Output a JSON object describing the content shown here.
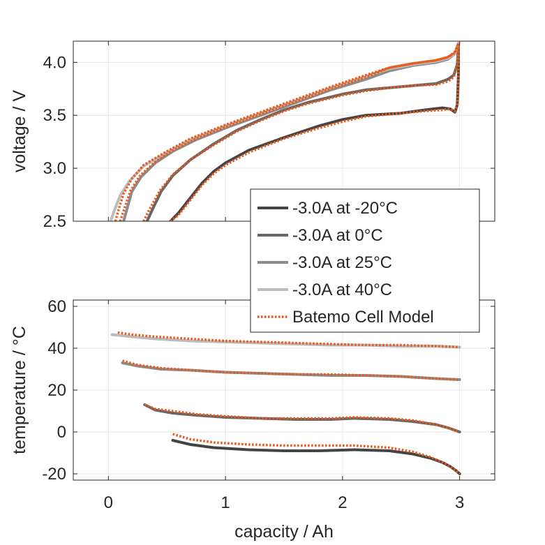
{
  "colors": {
    "model": "#E8591A",
    "series": [
      "#444444",
      "#666666",
      "#8c8c8c",
      "#bcbcbc"
    ],
    "grid": "#e6e6e6",
    "axis": "#262626"
  },
  "chart_data": [
    {
      "type": "line",
      "ylabel": "voltage / V",
      "xlim": [
        -0.3,
        3.3
      ],
      "ylim": [
        2.5,
        4.2
      ],
      "xticks": [
        0,
        1,
        2,
        3
      ],
      "yticks": [
        2.5,
        3.0,
        3.5,
        4.0
      ],
      "ytick_labels": [
        "2.5",
        "3.0",
        "3.5",
        "4.0"
      ],
      "grid": true,
      "legend_placement": "lower-right",
      "series": [
        {
          "name": "-3.0A at -20°C",
          "x": [
            0.53,
            0.6,
            0.7,
            0.8,
            0.9,
            1.0,
            1.2,
            1.5,
            1.8,
            2.0,
            2.2,
            2.5,
            2.7,
            2.85,
            2.92,
            2.96,
            2.98,
            2.99,
            2.99
          ],
          "y": [
            2.5,
            2.58,
            2.72,
            2.86,
            2.97,
            3.05,
            3.17,
            3.29,
            3.4,
            3.46,
            3.5,
            3.52,
            3.55,
            3.57,
            3.56,
            3.53,
            3.6,
            3.9,
            4.18
          ]
        },
        {
          "name": "-3.0A at 0°C",
          "x": [
            0.33,
            0.38,
            0.45,
            0.55,
            0.7,
            0.9,
            1.1,
            1.3,
            1.5,
            1.7,
            2.0,
            2.2,
            2.4,
            2.6,
            2.8,
            2.9,
            2.95,
            2.98,
            2.99
          ],
          "y": [
            2.5,
            2.62,
            2.78,
            2.93,
            3.08,
            3.23,
            3.36,
            3.46,
            3.55,
            3.62,
            3.7,
            3.74,
            3.76,
            3.78,
            3.8,
            3.84,
            3.88,
            3.98,
            4.18
          ]
        },
        {
          "name": "-3.0A at 25°C",
          "x": [
            0.13,
            0.16,
            0.2,
            0.28,
            0.4,
            0.55,
            0.75,
            1.0,
            1.3,
            1.6,
            1.9,
            2.2,
            2.4,
            2.6,
            2.8,
            2.9,
            2.96,
            2.99
          ],
          "y": [
            2.5,
            2.62,
            2.78,
            2.92,
            3.05,
            3.16,
            3.27,
            3.38,
            3.5,
            3.62,
            3.74,
            3.84,
            3.92,
            3.97,
            4.0,
            4.03,
            4.08,
            4.18
          ]
        },
        {
          "name": "-3.0A at 40°C",
          "x": [
            0.02,
            0.05,
            0.1,
            0.18,
            0.3,
            0.5,
            0.7,
            1.0,
            1.3,
            1.6,
            1.9,
            2.2,
            2.4,
            2.6,
            2.8,
            2.9,
            2.96,
            2.99
          ],
          "y": [
            2.5,
            2.6,
            2.74,
            2.88,
            3.02,
            3.15,
            3.27,
            3.4,
            3.52,
            3.64,
            3.76,
            3.87,
            3.94,
            3.98,
            4.01,
            4.04,
            4.08,
            4.18
          ]
        },
        {
          "name": "Batemo Cell Model",
          "model_of": [
            0,
            1,
            2,
            3
          ]
        }
      ],
      "model_curves": [
        {
          "x": [
            0.53,
            0.6,
            0.7,
            0.8,
            0.9,
            1.0,
            1.2,
            1.5,
            1.8,
            2.0,
            2.2,
            2.5,
            2.7,
            2.85,
            2.92,
            2.96,
            2.98,
            2.99,
            2.99
          ],
          "y": [
            2.5,
            2.56,
            2.7,
            2.84,
            2.95,
            3.03,
            3.15,
            3.28,
            3.38,
            3.44,
            3.49,
            3.52,
            3.54,
            3.55,
            3.56,
            3.54,
            3.6,
            3.9,
            4.18
          ]
        },
        {
          "x": [
            0.3,
            0.36,
            0.44,
            0.55,
            0.7,
            0.9,
            1.1,
            1.3,
            1.5,
            1.7,
            2.0,
            2.2,
            2.4,
            2.6,
            2.8,
            2.9,
            2.95,
            2.98,
            2.99
          ],
          "y": [
            2.5,
            2.63,
            2.79,
            2.94,
            3.08,
            3.22,
            3.35,
            3.45,
            3.54,
            3.61,
            3.69,
            3.73,
            3.76,
            3.78,
            3.79,
            3.82,
            3.86,
            3.98,
            4.18
          ]
        },
        {
          "x": [
            0.1,
            0.14,
            0.19,
            0.27,
            0.4,
            0.55,
            0.75,
            1.0,
            1.3,
            1.6,
            1.9,
            2.2,
            2.4,
            2.6,
            2.8,
            2.9,
            2.96,
            2.99
          ],
          "y": [
            2.5,
            2.63,
            2.79,
            2.93,
            3.06,
            3.17,
            3.28,
            3.39,
            3.51,
            3.63,
            3.75,
            3.86,
            3.95,
            3.99,
            4.02,
            4.05,
            4.1,
            4.18
          ]
        },
        {
          "x": [
            0.06,
            0.09,
            0.13,
            0.2,
            0.3,
            0.5,
            0.7,
            1.0,
            1.3,
            1.6,
            1.9,
            2.2,
            2.4,
            2.6,
            2.8,
            2.9,
            2.96,
            2.99
          ],
          "y": [
            2.5,
            2.62,
            2.76,
            2.9,
            3.03,
            3.16,
            3.28,
            3.41,
            3.53,
            3.65,
            3.77,
            3.88,
            3.95,
            3.99,
            4.02,
            4.05,
            4.09,
            4.18
          ]
        }
      ]
    },
    {
      "type": "line",
      "xlabel": "capacity / Ah",
      "ylabel": "temperature / °C",
      "xlim": [
        -0.3,
        3.3
      ],
      "ylim": [
        -23,
        63
      ],
      "xticks": [
        0,
        1,
        2,
        3
      ],
      "xtick_labels": [
        "0",
        "1",
        "2",
        "3"
      ],
      "yticks": [
        -20,
        0,
        20,
        40,
        60
      ],
      "ytick_labels": [
        "-20",
        "0",
        "20",
        "40",
        "60"
      ],
      "grid": true,
      "series": [
        {
          "name": "-3.0A at -20°C",
          "x": [
            0.55,
            0.7,
            0.9,
            1.2,
            1.5,
            1.8,
            2.1,
            2.4,
            2.6,
            2.75,
            2.85,
            2.92,
            2.97,
            3.0
          ],
          "y": [
            -4,
            -6,
            -7.5,
            -8.5,
            -9,
            -9,
            -8.5,
            -9,
            -10.5,
            -12.5,
            -14.5,
            -16.5,
            -18.5,
            -20
          ]
        },
        {
          "name": "-3.0A at 0°C",
          "x": [
            0.31,
            0.4,
            0.55,
            0.75,
            1.0,
            1.3,
            1.6,
            1.9,
            2.1,
            2.4,
            2.6,
            2.8,
            2.9,
            3.0
          ],
          "y": [
            13,
            10.5,
            9,
            8,
            7,
            6.5,
            6,
            6,
            6.5,
            6,
            5,
            3.5,
            2,
            0
          ]
        },
        {
          "name": "-3.0A at 25°C",
          "x": [
            0.12,
            0.25,
            0.45,
            0.7,
            1.0,
            1.3,
            1.6,
            1.9,
            2.2,
            2.5,
            2.8,
            3.0
          ],
          "y": [
            33,
            31.5,
            30,
            29.5,
            28.5,
            28,
            27.5,
            27,
            27,
            26.5,
            25.5,
            25
          ]
        },
        {
          "name": "-3.0A at 40°C",
          "x": [
            0.03,
            0.2,
            0.4,
            0.7,
            1.0,
            1.3,
            1.6,
            1.9,
            2.2,
            2.5,
            2.8,
            3.0
          ],
          "y": [
            46.5,
            45.5,
            44.5,
            43.5,
            43,
            42.5,
            42,
            41.5,
            41.5,
            41,
            41,
            40.5
          ]
        },
        {
          "name": "Batemo Cell Model",
          "model_of": [
            0,
            1,
            2,
            3
          ]
        }
      ],
      "model_curves": [
        {
          "x": [
            0.55,
            0.7,
            0.9,
            1.2,
            1.5,
            1.8,
            2.1,
            2.4,
            2.6,
            2.75,
            2.85,
            2.92,
            2.97,
            3.0
          ],
          "y": [
            -1,
            -3.5,
            -5,
            -6,
            -6.5,
            -6.5,
            -6.5,
            -7.5,
            -9.5,
            -12,
            -14.5,
            -16.5,
            -18.5,
            -20
          ]
        },
        {
          "x": [
            0.31,
            0.4,
            0.55,
            0.75,
            1.0,
            1.3,
            1.6,
            1.9,
            2.1,
            2.4,
            2.6,
            2.8,
            2.9,
            3.0
          ],
          "y": [
            13,
            11,
            10,
            8.5,
            7.5,
            6.5,
            6.5,
            6.5,
            7,
            6.5,
            5.5,
            3.5,
            2,
            0
          ]
        },
        {
          "x": [
            0.12,
            0.25,
            0.45,
            0.7,
            1.0,
            1.3,
            1.6,
            1.9,
            2.2,
            2.5,
            2.8,
            3.0
          ],
          "y": [
            34,
            32,
            30.5,
            29.5,
            28.5,
            28,
            27.5,
            27.5,
            27,
            26.5,
            25.5,
            25
          ]
        },
        {
          "x": [
            0.08,
            0.2,
            0.4,
            0.7,
            1.0,
            1.3,
            1.6,
            1.9,
            2.2,
            2.5,
            2.8,
            3.0
          ],
          "y": [
            47.5,
            46.5,
            45.5,
            44.5,
            43.5,
            43,
            42.5,
            42,
            41.5,
            41.5,
            41,
            40.5
          ]
        }
      ]
    }
  ]
}
